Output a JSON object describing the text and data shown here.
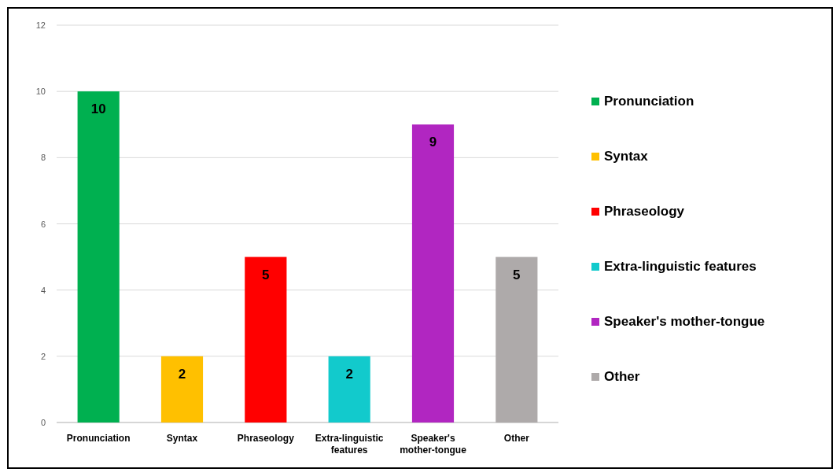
{
  "chart_data": {
    "type": "bar",
    "stacked": true,
    "categories": [
      "Pronunciation",
      "Syntax",
      "Phraseology",
      "Extra-linguistic features",
      "Speaker's mother-tongue",
      "Other"
    ],
    "series": [
      {
        "name": "Pronunciation",
        "color": "#00b050",
        "values": [
          10,
          null,
          null,
          null,
          null,
          null
        ]
      },
      {
        "name": "Syntax",
        "color": "#ffc000",
        "values": [
          null,
          2,
          null,
          null,
          null,
          null
        ]
      },
      {
        "name": "Phraseology",
        "color": "#ff0000",
        "values": [
          null,
          null,
          5,
          null,
          null,
          null
        ]
      },
      {
        "name": "Extra-linguistic features",
        "color": "#12cacc",
        "values": [
          null,
          null,
          null,
          2,
          null,
          null
        ]
      },
      {
        "name": "Speaker's mother-tongue",
        "color": "#b126c1",
        "values": [
          null,
          null,
          null,
          null,
          9,
          null
        ]
      },
      {
        "name": "Other",
        "color": "#aeaaaa",
        "values": [
          null,
          null,
          null,
          null,
          null,
          5
        ]
      }
    ],
    "ylim": [
      0,
      12
    ],
    "yticks": [
      0,
      2,
      4,
      6,
      8,
      10,
      12
    ],
    "grid": "y",
    "legend": "right",
    "data_labels": true
  }
}
